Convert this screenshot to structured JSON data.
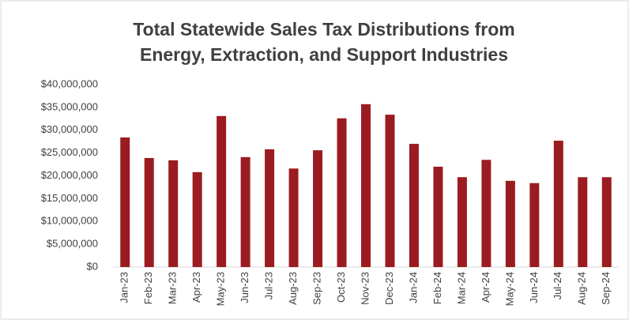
{
  "chart_data": {
    "type": "bar",
    "title": [
      "Total Statewide Sales Tax Distributions from",
      "Energy, Extraction, and Support Industries"
    ],
    "categories": [
      "Jan-23",
      "Feb-23",
      "Mar-23",
      "Apr-23",
      "May-23",
      "Jun-23",
      "Jul-23",
      "Aug-23",
      "Sep-23",
      "Oct-23",
      "Nov-23",
      "Dec-23",
      "Jan-24",
      "Feb-24",
      "Mar-24",
      "Apr-24",
      "May-24",
      "Jun-24",
      "Jul-24",
      "Aug-24",
      "Sep-24"
    ],
    "values": [
      28400000,
      23900000,
      23400000,
      20800000,
      33100000,
      24100000,
      25800000,
      21600000,
      25600000,
      32600000,
      35700000,
      33400000,
      27000000,
      22000000,
      19700000,
      23500000,
      18900000,
      18400000,
      27700000,
      19700000,
      19700000
    ],
    "color": "#9b1c20",
    "ylim": [
      0,
      40000000
    ],
    "yticks": [
      {
        "value": 0,
        "label": "$0"
      },
      {
        "value": 5000000,
        "label": "$5,000,000"
      },
      {
        "value": 10000000,
        "label": "$10,000,000"
      },
      {
        "value": 15000000,
        "label": "$15,000,000"
      },
      {
        "value": 20000000,
        "label": "$20,000,000"
      },
      {
        "value": 25000000,
        "label": "$25,000,000"
      },
      {
        "value": 30000000,
        "label": "$30,000,000"
      },
      {
        "value": 35000000,
        "label": "$35,000,000"
      },
      {
        "value": 40000000,
        "label": "$40,000,000"
      }
    ],
    "grid": false
  }
}
